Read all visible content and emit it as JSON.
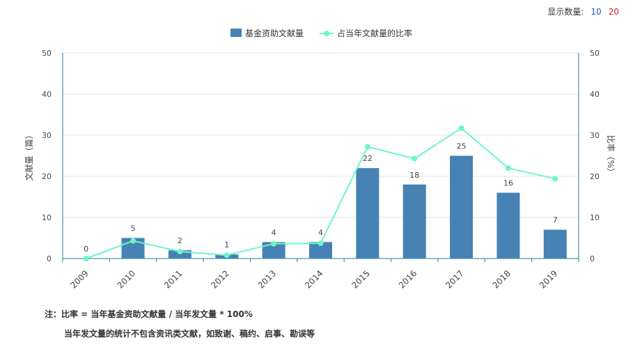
{
  "display_count": {
    "label": "显示数量:",
    "options": [
      "10",
      "20"
    ]
  },
  "colors": {
    "bar": "#4682b4",
    "line": "#6ef5c6",
    "axis": "#1f7a9c"
  },
  "chart_data": {
    "type": "bar+line",
    "categories": [
      "2009",
      "2010",
      "2011",
      "2012",
      "2013",
      "2014",
      "2015",
      "2016",
      "2017",
      "2018",
      "2019"
    ],
    "series": [
      {
        "name": "基金资助文献量",
        "type": "bar",
        "axis": "left",
        "values": [
          0,
          5,
          2,
          1,
          4,
          4,
          22,
          18,
          25,
          16,
          7
        ]
      },
      {
        "name": "占当年文献量的比率",
        "type": "line",
        "axis": "right",
        "values": [
          0,
          4.3,
          1.7,
          0.8,
          3.6,
          3.7,
          27.2,
          24.3,
          31.7,
          22.0,
          19.4
        ]
      }
    ],
    "ylabel_left": "文献量（篇）",
    "ylabel_right": "比率（%）",
    "ylim_left": [
      0,
      50
    ],
    "ylim_right": [
      0,
      50
    ],
    "yticks": [
      0,
      10,
      20,
      30,
      40,
      50
    ],
    "grid": true,
    "legend": "top-center"
  },
  "notes": {
    "line1": "注：比率 = 当年基金资助文献量 / 当年发文量 * 100%",
    "line2": "当年发文量的统计不包含资讯类文献，如致谢、稿约、启事、勘误等"
  }
}
